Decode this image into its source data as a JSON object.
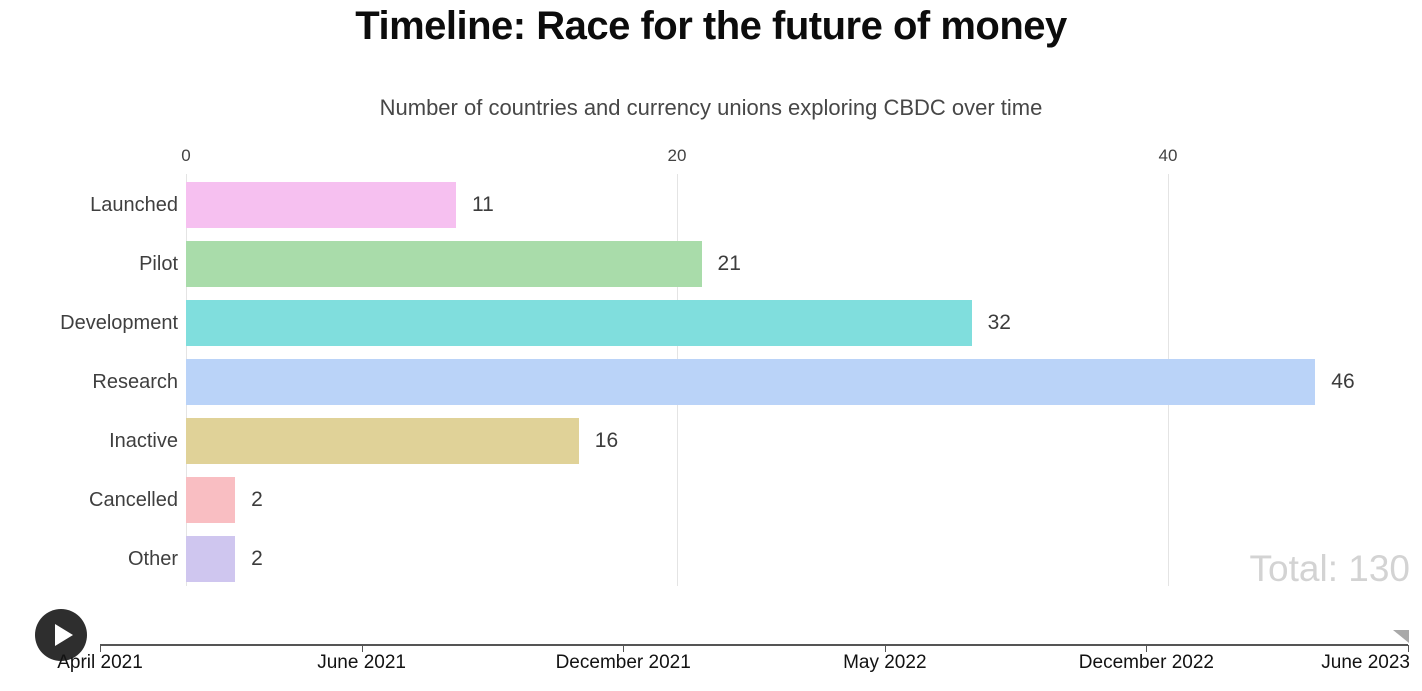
{
  "header": {
    "title": "Timeline: Race for the future of money",
    "subtitle": "Number of countries and currency unions exploring CBDC over time"
  },
  "chart_data": {
    "type": "bar",
    "orientation": "horizontal",
    "title": "Timeline: Race for the future of money",
    "subtitle": "Number of countries and currency unions exploring CBDC over time",
    "categories": [
      "Launched",
      "Pilot",
      "Development",
      "Research",
      "Inactive",
      "Cancelled",
      "Other"
    ],
    "values": [
      11,
      21,
      32,
      46,
      16,
      2,
      2
    ],
    "bar_colors": [
      "#f6c0f0",
      "#a9dcaa",
      "#80dedd",
      "#bad3f8",
      "#e0d298",
      "#f9bec2",
      "#cfc6ef"
    ],
    "value_axis_ticks": [
      0,
      20,
      40
    ],
    "xlim": [
      0,
      50
    ],
    "grid": true,
    "legend": "none",
    "total": 130,
    "total_label": "Total: 130"
  },
  "timeline": {
    "labels": [
      "April 2021",
      "June 2021",
      "December 2021",
      "May 2022",
      "December 2022",
      "June 2023"
    ],
    "selected": "June 2023",
    "play_icon": "play-icon",
    "handle_icon": "slider-handle-icon"
  },
  "colors": {
    "grid": "#e4e4e4",
    "axis": "#555555",
    "title_text": "#0c0c0c",
    "subtitle_text": "#474747",
    "label_text": "#3f3f3f",
    "total_text": "#d3d3d3",
    "date_text": "#121212",
    "play_button_bg": "#2e2e2e",
    "handle": "#a9a9a9"
  }
}
